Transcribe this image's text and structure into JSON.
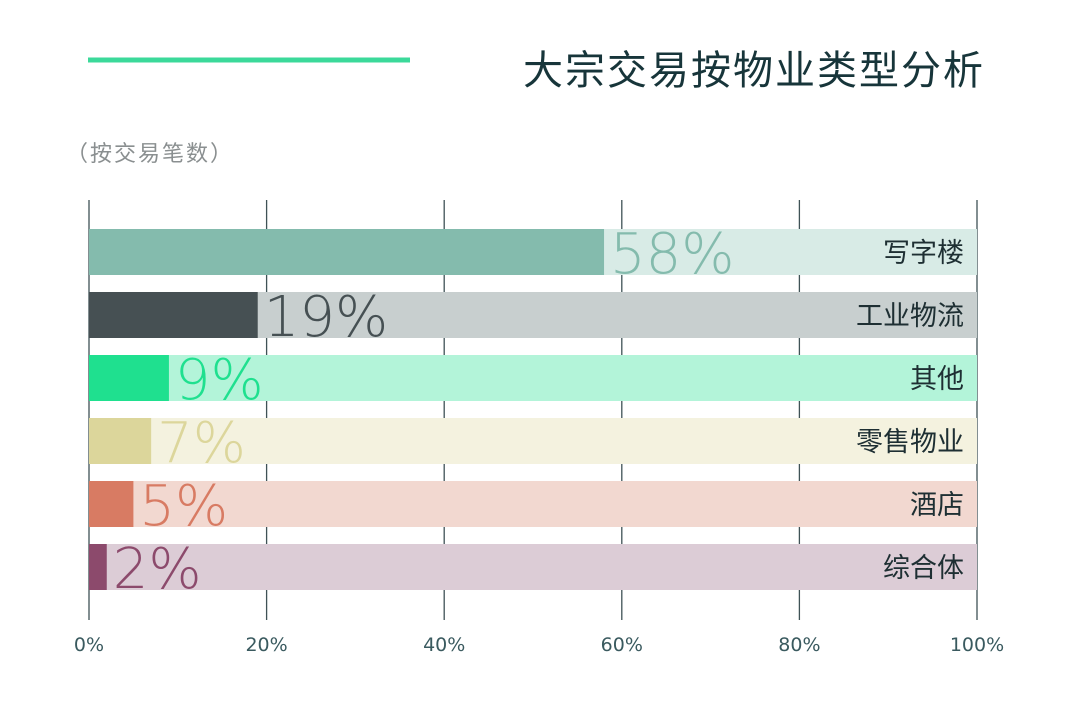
{
  "title": "大宗交易按物业类型分析",
  "subtitle": "（按交易笔数）",
  "colors": {
    "accent_line": "#3bd99a",
    "title_text": "#17353a",
    "grid": "#3f5256"
  },
  "chart_data": {
    "type": "bar",
    "orientation": "horizontal",
    "title": "大宗交易按物业类型分析",
    "subtitle": "（按交易笔数）",
    "xlabel": "",
    "ylabel": "",
    "xlim": [
      0,
      100
    ],
    "x_ticks": [
      0,
      20,
      40,
      60,
      80,
      100
    ],
    "x_tick_labels": [
      "0%",
      "20%",
      "40%",
      "60%",
      "80%",
      "100%"
    ],
    "grid": true,
    "legend": "none",
    "categories": [
      "写字楼",
      "工业物流",
      "其他",
      "零售物业",
      "酒店",
      "综合体"
    ],
    "values": [
      58,
      19,
      9,
      7,
      5,
      2
    ],
    "value_labels": [
      "58%",
      "19%",
      "9%",
      "7%",
      "5%",
      "2%"
    ],
    "bar_colors": [
      "#84bbad",
      "#465053",
      "#1fe08f",
      "#dcd69b",
      "#d87b63",
      "#8c4a6c"
    ],
    "track_colors": [
      "#d8ebe6",
      "#c8cfcf",
      "#b3f4d9",
      "#f4f2df",
      "#f2d8d0",
      "#dcccd6"
    ],
    "label_colors": [
      "#84bbad",
      "#465053",
      "#1fe08f",
      "#dcd69b",
      "#d87b63",
      "#8c4a6c"
    ]
  }
}
